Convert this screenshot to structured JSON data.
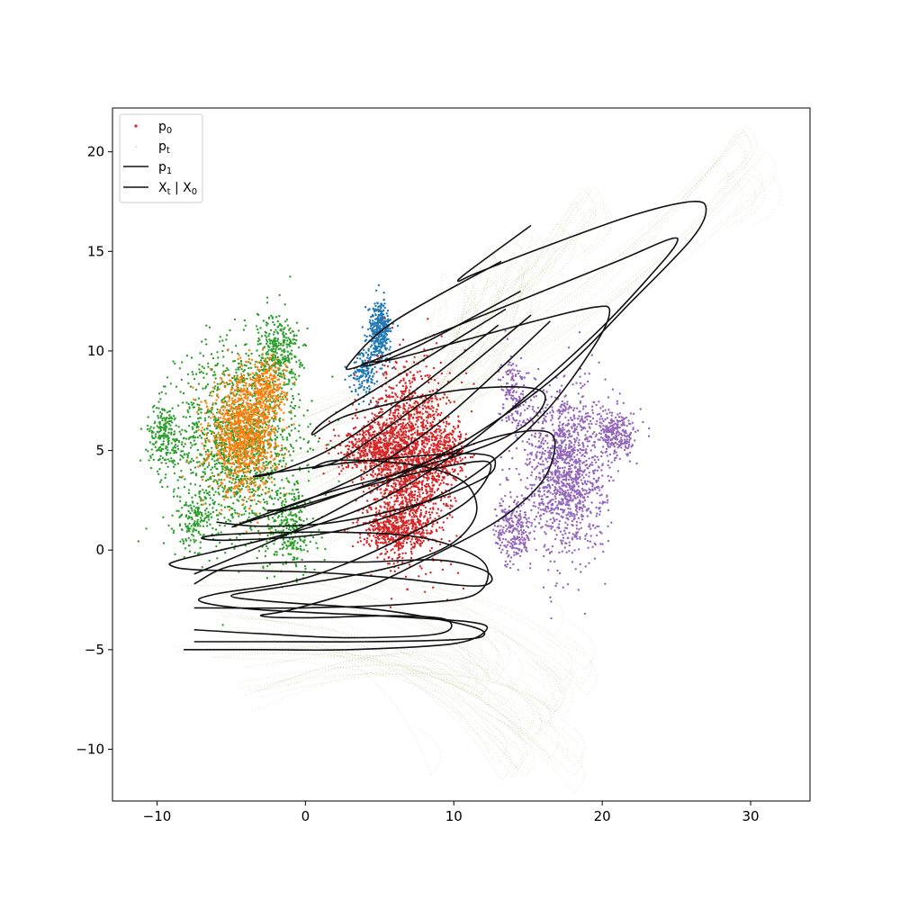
{
  "chart_data": {
    "type": "scatter",
    "title": "",
    "xlabel": "",
    "ylabel": "",
    "xlim": [
      -13,
      34
    ],
    "ylim": [
      -12.6,
      22.2
    ],
    "x_ticks": [
      -10,
      0,
      10,
      20,
      30
    ],
    "y_ticks": [
      -10,
      -5,
      0,
      5,
      10,
      15,
      20
    ],
    "x_tick_labels": [
      "−10",
      "0",
      "10",
      "20",
      "30"
    ],
    "y_tick_labels": [
      "−10",
      "−5",
      "0",
      "5",
      "10",
      "15",
      "20"
    ],
    "legend_position": "upper-left",
    "legend": [
      {
        "base": "p",
        "sub": "0",
        "text": "",
        "marker": "dot",
        "color": "#d62728"
      },
      {
        "base": "p",
        "sub": "t",
        "text": "",
        "marker": "tiny-dot",
        "color": "#c7c89a"
      },
      {
        "base": "p",
        "sub": "1",
        "text": "",
        "marker": "line",
        "color": "#111111"
      },
      {
        "base": "X",
        "sub": "t",
        "text": " | X",
        "sub2": "0",
        "marker": "line",
        "color": "#111111"
      }
    ],
    "series": [
      {
        "key": "p1_green",
        "color": "#2ca02c",
        "clusters": [
          {
            "cx": -4.5,
            "cy": 5.5,
            "sx": 2.8,
            "sy": 3.2,
            "n": 1500
          },
          {
            "cx": -1.8,
            "cy": 10.0,
            "sx": 0.9,
            "sy": 1.3,
            "n": 300
          },
          {
            "cx": -9.5,
            "cy": 5.8,
            "sx": 0.8,
            "sy": 1.0,
            "n": 200
          },
          {
            "cx": -1.0,
            "cy": 1.0,
            "sx": 1.2,
            "sy": 1.5,
            "n": 260
          },
          {
            "cx": -7.5,
            "cy": 1.5,
            "sx": 0.9,
            "sy": 0.9,
            "n": 150
          }
        ]
      },
      {
        "key": "p1_orange",
        "color": "#ff7f0e",
        "clusters": [
          {
            "cx": -4.2,
            "cy": 5.8,
            "sx": 1.5,
            "sy": 1.9,
            "n": 1100
          },
          {
            "cx": -2.5,
            "cy": 8.0,
            "sx": 0.8,
            "sy": 1.0,
            "n": 250
          }
        ]
      },
      {
        "key": "p1_blue",
        "color": "#1f77b4",
        "clusters": [
          {
            "cx": 5.0,
            "cy": 11.0,
            "sx": 0.5,
            "sy": 1.0,
            "n": 350
          },
          {
            "cx": 4.0,
            "cy": 9.0,
            "sx": 0.6,
            "sy": 0.8,
            "n": 150
          }
        ]
      },
      {
        "key": "p1_purple",
        "color": "#9467bd",
        "clusters": [
          {
            "cx": 17.5,
            "cy": 4.0,
            "sx": 1.8,
            "sy": 2.8,
            "n": 1300
          },
          {
            "cx": 14.0,
            "cy": 1.0,
            "sx": 0.8,
            "sy": 1.2,
            "n": 250
          },
          {
            "cx": 21.0,
            "cy": 5.8,
            "sx": 0.9,
            "sy": 0.8,
            "n": 250
          },
          {
            "cx": 14.0,
            "cy": 8.0,
            "sx": 0.6,
            "sy": 1.2,
            "n": 150
          }
        ]
      },
      {
        "key": "p0_red",
        "color": "#d62728",
        "clusters": [
          {
            "cx": 7.0,
            "cy": 4.5,
            "sx": 1.8,
            "sy": 3.0,
            "n": 1800
          },
          {
            "cx": 4.5,
            "cy": 5.0,
            "sx": 1.5,
            "sy": 0.8,
            "n": 400
          },
          {
            "cx": 9.5,
            "cy": 5.0,
            "sx": 0.9,
            "sy": 1.0,
            "n": 250
          },
          {
            "cx": 6.0,
            "cy": 1.0,
            "sx": 1.5,
            "sy": 0.8,
            "n": 400
          }
        ]
      }
    ],
    "trajectories": [
      {
        "points": [
          [
            15.2,
            16.3
          ],
          [
            11.0,
            14.0
          ],
          [
            10.3,
            13.5
          ],
          [
            11.5,
            13.9
          ],
          [
            16.0,
            15.2
          ],
          [
            22.0,
            16.8
          ],
          [
            26.0,
            17.5
          ],
          [
            27.0,
            17.1
          ],
          [
            26.0,
            15.6
          ],
          [
            22.0,
            12.5
          ],
          [
            17.0,
            8.8
          ],
          [
            11.0,
            5.6
          ],
          [
            5.0,
            3.2
          ],
          [
            1.0,
            1.6
          ],
          [
            -3.0,
            0.2
          ],
          [
            -7.5,
            -1.2
          ]
        ]
      },
      {
        "points": [
          [
            13.2,
            14.5
          ],
          [
            6.0,
            11.5
          ],
          [
            3.0,
            9.4
          ],
          [
            3.5,
            9.2
          ],
          [
            8.0,
            10.6
          ],
          [
            15.0,
            12.7
          ],
          [
            21.0,
            14.5
          ],
          [
            24.5,
            15.6
          ],
          [
            25.0,
            15.4
          ],
          [
            23.5,
            14.0
          ],
          [
            20.0,
            11.2
          ],
          [
            15.0,
            7.8
          ],
          [
            10.0,
            4.8
          ],
          [
            5.0,
            2.5
          ],
          [
            0.5,
            1.2
          ],
          [
            -4.0,
            0.3
          ],
          [
            -8.5,
            -0.5
          ],
          [
            -9.0,
            -0.8
          ],
          [
            -7.0,
            -1.0
          ],
          [
            0.0,
            -1.1
          ],
          [
            6.0,
            -1.4
          ],
          [
            11.0,
            -1.8
          ],
          [
            12.5,
            -1.6
          ],
          [
            12.0,
            -1.0
          ],
          [
            9.0,
            -0.5
          ],
          [
            4.0,
            -0.6
          ],
          [
            -0.5,
            -0.6
          ],
          [
            -5.0,
            -0.8
          ],
          [
            -7.5,
            -1.7
          ]
        ]
      },
      {
        "points": [
          [
            14.5,
            13.0
          ],
          [
            8.0,
            10.4
          ],
          [
            4.5,
            9.3
          ],
          [
            4.0,
            9.4
          ],
          [
            6.0,
            9.6
          ],
          [
            11.0,
            10.6
          ],
          [
            16.0,
            11.6
          ],
          [
            19.5,
            12.2
          ],
          [
            20.5,
            12.0
          ],
          [
            19.5,
            10.3
          ],
          [
            16.0,
            6.8
          ],
          [
            11.0,
            3.6
          ],
          [
            6.0,
            1.8
          ],
          [
            1.0,
            0.8
          ],
          [
            -5.0,
            0.5
          ],
          [
            -7.0,
            0.6
          ],
          [
            -5.0,
            0.8
          ],
          [
            2.0,
            0.9
          ],
          [
            8.0,
            0.6
          ],
          [
            12.0,
            -0.6
          ],
          [
            11.5,
            -2.2
          ],
          [
            7.0,
            -2.7
          ],
          [
            0.0,
            -2.9
          ],
          [
            -7.5,
            -2.9
          ]
        ]
      },
      {
        "points": [
          [
            13.5,
            12.1
          ],
          [
            5.0,
            8.2
          ],
          [
            1.5,
            6.6
          ],
          [
            0.5,
            5.8
          ],
          [
            3.0,
            6.8
          ],
          [
            10.0,
            8.0
          ],
          [
            15.5,
            8.1
          ],
          [
            15.8,
            7.0
          ],
          [
            13.0,
            5.5
          ],
          [
            7.0,
            4.0
          ],
          [
            2.0,
            3.0
          ],
          [
            -2.0,
            2.0
          ],
          [
            -4.8,
            1.2
          ],
          [
            -4.0,
            1.4
          ],
          [
            0.0,
            2.3
          ],
          [
            6.0,
            3.6
          ],
          [
            11.0,
            4.4
          ],
          [
            12.5,
            4.2
          ],
          [
            11.0,
            2.5
          ],
          [
            7.0,
            0.8
          ],
          [
            3.0,
            -0.6
          ],
          [
            -1.0,
            -1.6
          ],
          [
            -6.0,
            -2.2
          ],
          [
            -7.0,
            -2.6
          ],
          [
            -3.0,
            -3.0
          ],
          [
            5.0,
            -3.3
          ],
          [
            11.0,
            -3.6
          ],
          [
            12.2,
            -4.0
          ],
          [
            10.0,
            -4.7
          ],
          [
            3.0,
            -5.0
          ],
          [
            -3.0,
            -5.0
          ],
          [
            -8.2,
            -5.0
          ]
        ]
      },
      {
        "points": [
          [
            16.5,
            11.5
          ],
          [
            10.0,
            7.0
          ],
          [
            5.0,
            4.3
          ],
          [
            1.0,
            2.8
          ],
          [
            -1.5,
            2.1
          ],
          [
            -2.5,
            2.0
          ],
          [
            0.0,
            2.2
          ],
          [
            6.0,
            3.8
          ],
          [
            12.0,
            5.5
          ],
          [
            15.5,
            6.0
          ],
          [
            16.8,
            5.5
          ],
          [
            16.0,
            3.5
          ],
          [
            13.0,
            1.5
          ],
          [
            8.0,
            -0.5
          ],
          [
            4.0,
            -1.9
          ],
          [
            -1.0,
            -3.0
          ],
          [
            -3.0,
            -3.3
          ],
          [
            0.0,
            -3.4
          ],
          [
            6.0,
            -3.3
          ],
          [
            9.5,
            -3.5
          ],
          [
            9.0,
            -4.2
          ],
          [
            3.0,
            -4.4
          ],
          [
            -3.0,
            -4.2
          ],
          [
            -7.5,
            -4.0
          ]
        ]
      },
      {
        "points": [
          [
            15.2,
            11.8
          ],
          [
            10.0,
            8.6
          ],
          [
            6.0,
            6.4
          ],
          [
            2.5,
            4.6
          ],
          [
            0.5,
            4.1
          ],
          [
            2.0,
            4.5
          ],
          [
            6.0,
            4.4
          ],
          [
            9.0,
            4.0
          ],
          [
            11.0,
            3.2
          ],
          [
            11.5,
            1.8
          ],
          [
            10.0,
            0.4
          ],
          [
            7.0,
            -0.6
          ],
          [
            3.0,
            -1.3
          ],
          [
            -2.0,
            -1.9
          ],
          [
            -5.0,
            -2.3
          ],
          [
            -2.0,
            -2.6
          ],
          [
            5.0,
            -3.0
          ],
          [
            11.0,
            -3.8
          ],
          [
            12.0,
            -4.3
          ],
          [
            10.0,
            -4.5
          ],
          [
            4.0,
            -4.6
          ],
          [
            -2.0,
            -4.6
          ],
          [
            -7.5,
            -4.6
          ]
        ]
      },
      {
        "points": [
          [
            13.0,
            11.3
          ],
          [
            7.0,
            7.8
          ],
          [
            2.0,
            5.2
          ],
          [
            -2.0,
            3.9
          ],
          [
            -3.5,
            3.7
          ],
          [
            -2.0,
            3.9
          ],
          [
            3.0,
            4.4
          ],
          [
            9.0,
            4.8
          ],
          [
            12.0,
            4.8
          ],
          [
            12.8,
            4.4
          ],
          [
            12.0,
            3.6
          ],
          [
            8.0,
            2.4
          ],
          [
            2.0,
            1.4
          ],
          [
            -3.0,
            1.2
          ],
          [
            -6.0,
            1.4
          ]
        ]
      }
    ],
    "flow_shadows": [
      {
        "start": [
          -4.0,
          4.0
        ],
        "peak": [
          29.8,
          20.5
        ]
      },
      {
        "start": [
          -3.0,
          3.5
        ],
        "peak": [
          31.5,
          19.0
        ]
      },
      {
        "start": [
          -5.0,
          6.0
        ],
        "peak": [
          20.0,
          18.0
        ]
      },
      {
        "start": [
          -2.0,
          2.0
        ],
        "peak": [
          18.5,
          16.5
        ]
      },
      {
        "start": [
          0.0,
          3.0
        ],
        "peak": [
          16.0,
          15.5
        ]
      },
      {
        "start": [
          -3.0,
          1.0
        ],
        "peak": [
          13.5,
          14.5
        ]
      },
      {
        "start": [
          1.0,
          5.0
        ],
        "peak": [
          11.0,
          13.5
        ]
      },
      {
        "start": [
          -1.0,
          0.0
        ],
        "peak": [
          15.0,
          13.0
        ]
      },
      {
        "start": [
          -6.0,
          -3.0
        ],
        "peak": [
          14.5,
          -11.0
        ]
      },
      {
        "start": [
          -5.0,
          -4.0
        ],
        "peak": [
          18.2,
          -11.3
        ]
      },
      {
        "start": [
          -7.0,
          -5.0
        ],
        "peak": [
          16.0,
          -9.0
        ]
      },
      {
        "start": [
          -4.0,
          -6.0
        ],
        "peak": [
          17.5,
          -8.0
        ]
      },
      {
        "start": [
          -6.0,
          -2.0
        ],
        "peak": [
          14.0,
          -7.0
        ]
      },
      {
        "start": [
          -3.0,
          -7.0
        ],
        "peak": [
          12.5,
          -6.5
        ]
      },
      {
        "start": [
          -5.0,
          -1.0
        ],
        "peak": [
          19.0,
          -6.8
        ]
      }
    ]
  }
}
